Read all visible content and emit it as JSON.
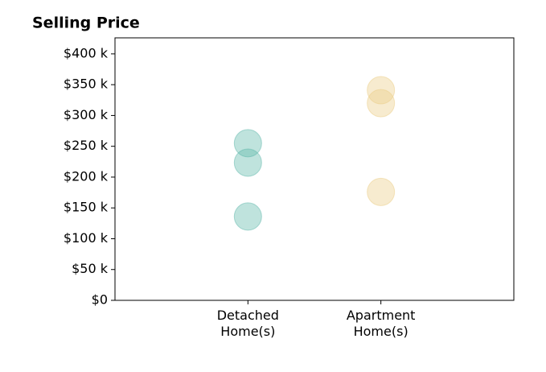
{
  "chart_data": {
    "type": "strip",
    "title": "Selling Price",
    "categories": [
      "Detached\nHome(s)",
      "Apartment\nHome(s)"
    ],
    "values": [
      [
        255000,
        223500,
        136000
      ],
      [
        341000,
        320000,
        176000
      ]
    ],
    "colors": [
      "#5fb8ab",
      "#ebcd86"
    ],
    "ylim": [
      0,
      426000
    ],
    "yticks": [
      {
        "value": 0,
        "label": "$0"
      },
      {
        "value": 50000,
        "label": "$50 k"
      },
      {
        "value": 100000,
        "label": "$100 k"
      },
      {
        "value": 150000,
        "label": "$150 k"
      },
      {
        "value": 200000,
        "label": "$200 k"
      },
      {
        "value": 250000,
        "label": "$250 k"
      },
      {
        "value": 300000,
        "label": "$300 k"
      },
      {
        "value": 350000,
        "label": "$350 k"
      },
      {
        "value": 400000,
        "label": "$400 k"
      }
    ]
  }
}
